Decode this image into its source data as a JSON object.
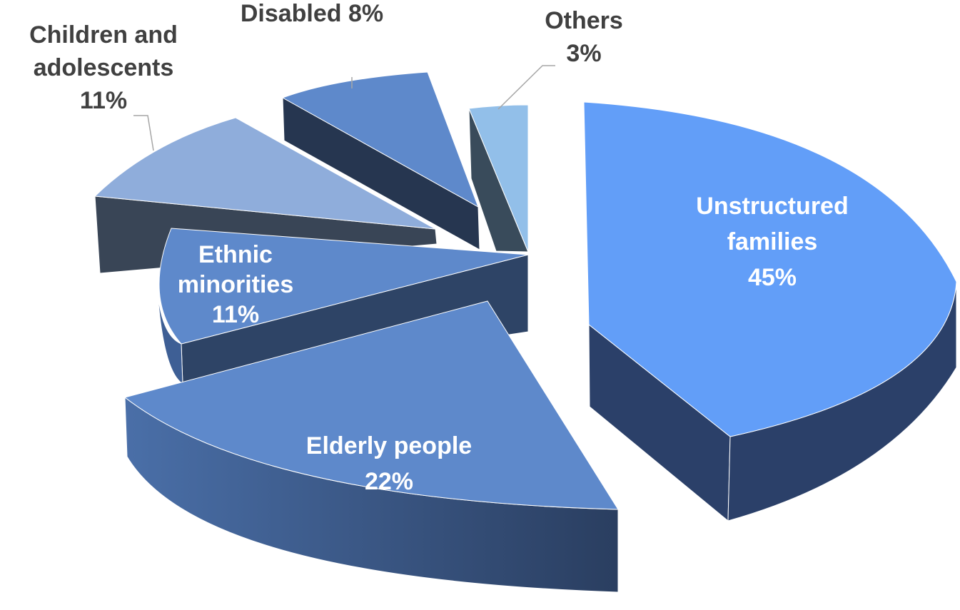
{
  "chart_data": {
    "type": "pie",
    "style": "3d-exploded",
    "title": "",
    "slices": [
      {
        "label": "Unstructured families",
        "label_lines": [
          "Unstructured",
          "families"
        ],
        "value": 45,
        "value_text": "45%",
        "color": "#629EF8",
        "side_color": "#2B4069",
        "label_color": "#ffffff",
        "label_placement": "inside"
      },
      {
        "label": "Elderly people",
        "label_lines": [
          "Elderly people"
        ],
        "value": 22,
        "value_text": "22%",
        "color": "#5E89CB",
        "side_color": "#3E5F95",
        "label_color": "#ffffff",
        "label_placement": "inside"
      },
      {
        "label": "Ethnic minorities",
        "label_lines": [
          "Ethnic",
          "minorities"
        ],
        "value": 11,
        "value_text": "11%",
        "color": "#5E89CB",
        "side_color": "#2E4466",
        "label_color": "#ffffff",
        "label_placement": "inside"
      },
      {
        "label": "Children and adolescents",
        "label_lines": [
          "Children and",
          "adolescents"
        ],
        "value": 11,
        "value_text": "11%",
        "color": "#8FADDB",
        "side_color": "#394556",
        "label_color": "#404040",
        "label_placement": "outside"
      },
      {
        "label": "Disabled",
        "label_lines": [
          "Disabled 8%"
        ],
        "value": 8,
        "value_text": "",
        "color": "#5E89CB",
        "side_color": "#263650",
        "label_color": "#404040",
        "label_placement": "outside"
      },
      {
        "label": "Others",
        "label_lines": [
          "Others"
        ],
        "value": 3,
        "value_text": "3%",
        "color": "#92BFE9",
        "side_color": "#394B5B",
        "label_color": "#404040",
        "label_placement": "outside"
      }
    ],
    "legend": "none"
  }
}
